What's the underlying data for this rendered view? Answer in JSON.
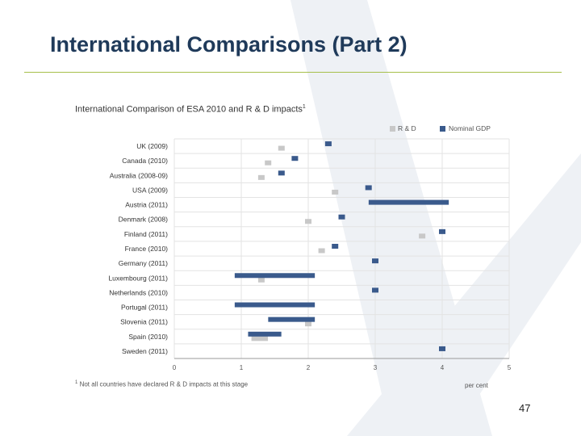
{
  "slide": {
    "title": "International Comparisons (Part 2)",
    "page_number": "47"
  },
  "colors": {
    "rd": "#c8c8c8",
    "gdp": "#3a5a8c",
    "watermark": "#eef1f5",
    "rule": "#a6bf4a"
  },
  "chart_data": {
    "type": "scatter",
    "title": "International Comparison of ESA 2010 and R & D impacts",
    "title_footnote_marker": "1",
    "xlabel": "per cent",
    "xlim": [
      0,
      5
    ],
    "xticks": [
      "0",
      "1",
      "2",
      "3",
      "4",
      "5"
    ],
    "grid": true,
    "legend_position": "top-right",
    "categories": [
      "UK (2009)",
      "Canada (2010)",
      "Australia (2008-09)",
      "USA (2009)",
      "Austria (2011)",
      "Denmark (2008)",
      "Finland (2011)",
      "France (2010)",
      "Germany (2011)",
      "Luxembourg (2011)",
      "Netherlands (2010)",
      "Portugal (2011)",
      "Slovenia (2011)",
      "Spain (2010)",
      "Sweden (2011)"
    ],
    "series": [
      {
        "name": "R & D",
        "values": [
          [
            1.6,
            1.6
          ],
          [
            1.4,
            1.4
          ],
          [
            1.3,
            1.3
          ],
          [
            2.4,
            2.4
          ],
          null,
          [
            2.0,
            2.0
          ],
          [
            3.7,
            3.7
          ],
          [
            2.2,
            2.2
          ],
          null,
          [
            1.3,
            1.3
          ],
          null,
          null,
          [
            2.0,
            2.0
          ],
          [
            1.2,
            1.35
          ],
          null
        ]
      },
      {
        "name": "Nominal GDP",
        "values": [
          [
            2.3,
            2.3
          ],
          [
            1.8,
            1.8
          ],
          [
            1.6,
            1.6
          ],
          [
            2.9,
            2.9
          ],
          [
            2.95,
            4.05
          ],
          [
            2.5,
            2.5
          ],
          [
            4.0,
            4.0
          ],
          [
            2.4,
            2.4
          ],
          [
            3.0,
            3.0
          ],
          [
            0.95,
            2.05
          ],
          [
            3.0,
            3.0
          ],
          [
            0.95,
            2.05
          ],
          [
            1.45,
            2.05
          ],
          [
            1.15,
            1.55
          ],
          [
            4.0,
            4.0
          ]
        ]
      }
    ],
    "footnote_marker": "1",
    "footnote": "Not all countries have declared R & D impacts at this stage"
  }
}
